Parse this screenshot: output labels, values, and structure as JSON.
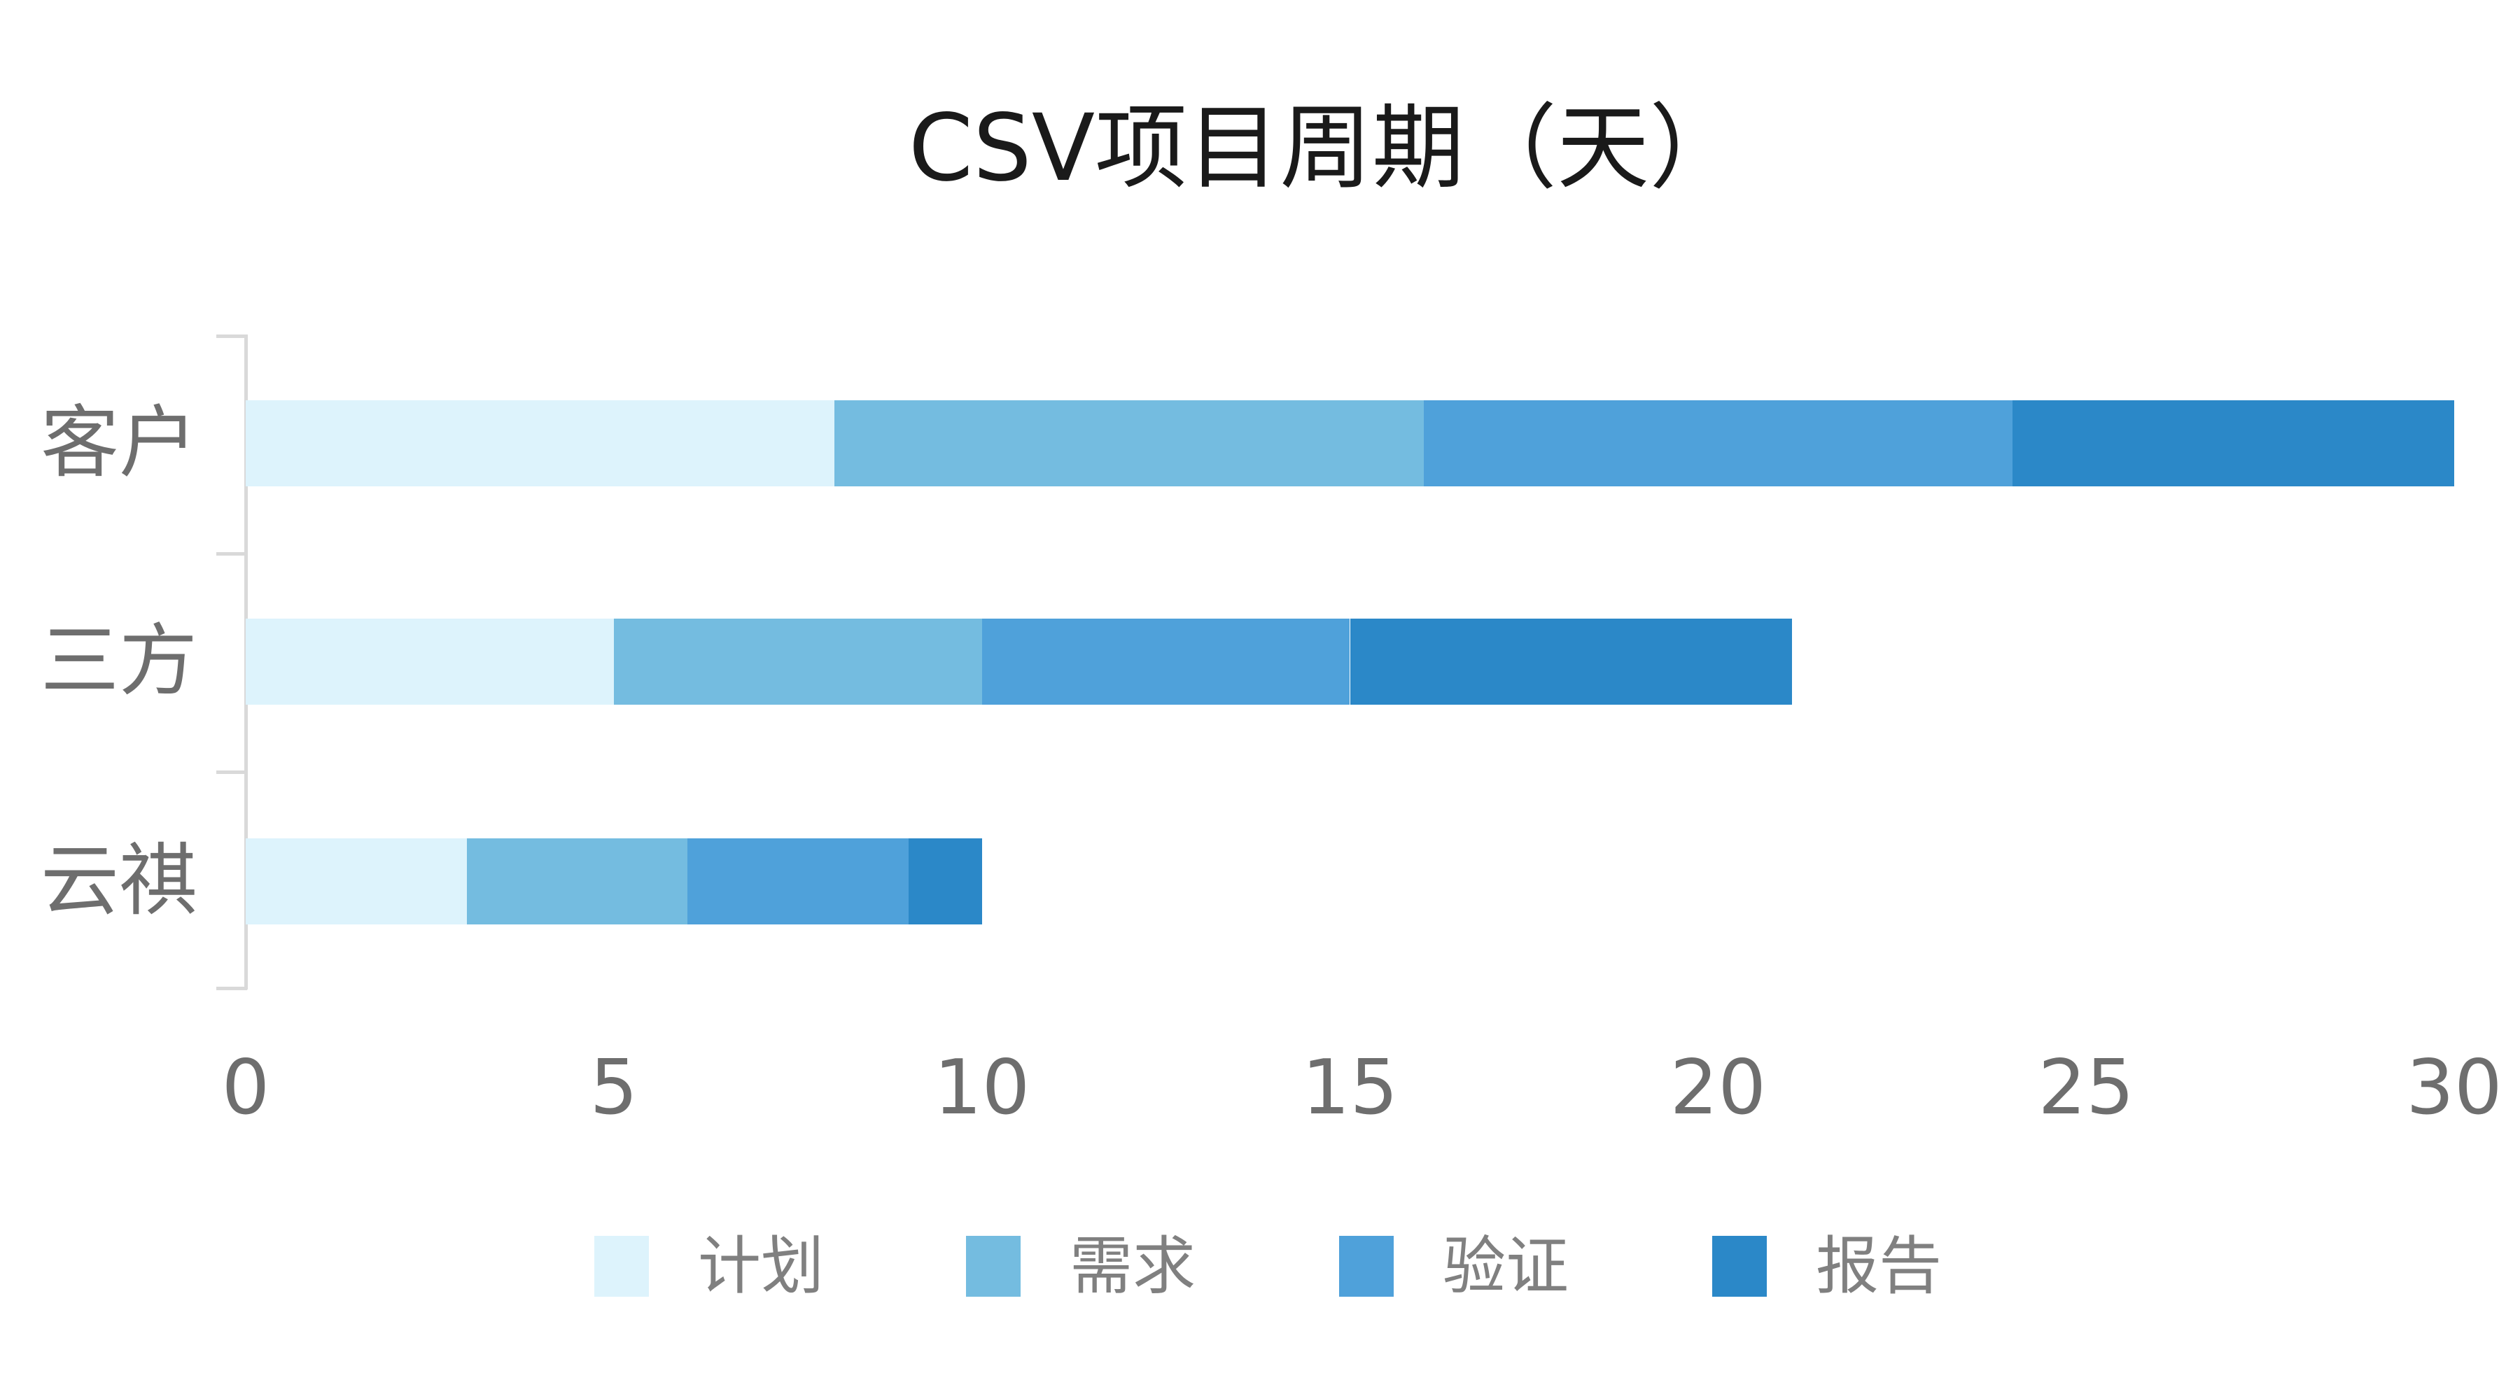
{
  "chart_data": {
    "type": "bar",
    "orientation": "horizontal",
    "stacked": true,
    "title": "CSV项目周期（天）",
    "xlabel": "",
    "ylabel": "",
    "categories": [
      "客户",
      "三方",
      "云祺"
    ],
    "series": [
      {
        "name": "计划",
        "color": "#DDF3FC",
        "values": [
          8,
          5,
          3
        ]
      },
      {
        "name": "需求",
        "color": "#74BCE0",
        "values": [
          8,
          5,
          3
        ]
      },
      {
        "name": "验证",
        "color": "#4FA1DA",
        "values": [
          8,
          5,
          3
        ]
      },
      {
        "name": "报告",
        "color": "#2B88C8",
        "values": [
          6,
          6,
          1
        ]
      }
    ],
    "totals": [
      30,
      21,
      10
    ],
    "xlim": [
      0,
      30
    ],
    "xticks": [
      "0",
      "5",
      "10",
      "15",
      "20",
      "25",
      "30"
    ],
    "grid": false,
    "legend_position": "bottom"
  }
}
